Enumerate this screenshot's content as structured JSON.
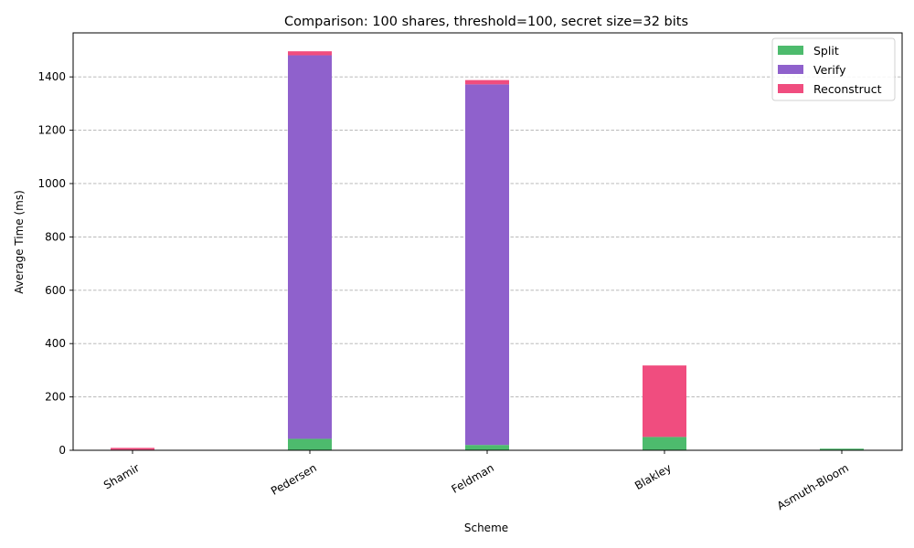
{
  "chart_data": {
    "type": "bar",
    "stacked": true,
    "title": "Comparison: 100 shares, threshold=100, secret size=32 bits",
    "xlabel": "Scheme",
    "ylabel": "Average Time (ms)",
    "categories": [
      "Shamir",
      "Pedersen",
      "Feldman",
      "Blakley",
      "Asmuth-Bloom"
    ],
    "series": [
      {
        "name": "Split",
        "color": "#4dbb6d",
        "values": [
          2,
          43,
          20,
          50,
          6
        ]
      },
      {
        "name": "Verify",
        "color": "#8f61cc",
        "values": [
          0,
          1438,
          1352,
          0,
          0
        ]
      },
      {
        "name": "Reconstruct",
        "color": "#f04d7f",
        "values": [
          7,
          15,
          16,
          268,
          0
        ]
      }
    ],
    "ylim": [
      0,
      1565
    ],
    "yticks": [
      0,
      200,
      400,
      600,
      800,
      1000,
      1200,
      1400
    ],
    "grid": "y, dashed",
    "legend_position": "top-right"
  }
}
